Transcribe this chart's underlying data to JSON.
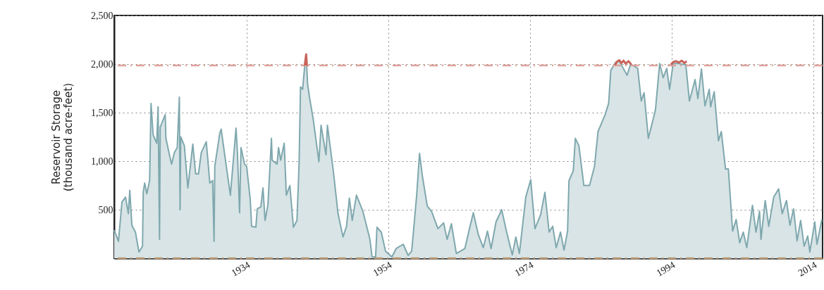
{
  "chart_data": {
    "type": "area",
    "ylabel": "Reservoir Storage\n(thousand acre-feet)",
    "xlim": [
      1915.3,
      2015.3
    ],
    "xticks": [
      1934,
      1954,
      1974,
      1994,
      2014
    ],
    "ylim": [
      0,
      2500
    ],
    "yticks": [
      500,
      {
        "value": 1000,
        "label": "1,000"
      },
      {
        "value": 1500,
        "label": "1,500"
      },
      {
        "value": 2000,
        "label": "2,000"
      },
      {
        "value": 2500,
        "label": "2,500"
      }
    ],
    "grid": true,
    "series": [
      {
        "color": "#7fa8ae",
        "x": [
          1915.3,
          1915.9,
          1916.4,
          1916.9,
          1917.3,
          1917.5,
          1917.8,
          1918.3,
          1918.8,
          1919.3,
          1919.4,
          1919.6,
          1919.9,
          1920.3,
          1920.5,
          1920.8,
          1921.3,
          1921.5,
          1921.7,
          1921.8,
          1922.5,
          1922.6,
          1923.1,
          1923.4,
          1923.8,
          1924.2,
          1924.5,
          1924.6,
          1924.7,
          1925.2,
          1925.7,
          1926.4,
          1926.8,
          1927.2,
          1927.6,
          1928.3,
          1928.8,
          1929.2,
          1929.4,
          1929.5,
          1930.2,
          1930.4,
          1931.0,
          1931.7,
          1932.5,
          1932.7,
          1933.0,
          1933.2,
          1933.7,
          1934.0,
          1934.5,
          1934.7,
          1935.3,
          1935.5,
          1936.0,
          1936.3,
          1936.6,
          1937.0,
          1937.5,
          1937.6,
          1938.3,
          1938.5,
          1938.8,
          1939.3,
          1939.6,
          1940.1,
          1940.6,
          1941.1,
          1941.4,
          1941.6,
          1941.9,
          1942.2,
          1942.4,
          1942.6,
          1942.9,
          1943.4,
          1944.2,
          1944.5,
          1945.2,
          1945.4,
          1946.2,
          1946.9,
          1947.6,
          1948.1,
          1948.5,
          1948.9,
          1949.5,
          1950.4,
          1951.4,
          1951.7,
          1952.2,
          1952.4,
          1953.0,
          1953.6,
          1954.5,
          1955.1,
          1956.1,
          1956.8,
          1957.3,
          1958.0,
          1958.4,
          1958.8,
          1959.5,
          1960.1,
          1961.0,
          1961.8,
          1962.3,
          1962.9,
          1963.6,
          1964.8,
          1965.4,
          1966.0,
          1966.7,
          1967.4,
          1968.0,
          1968.5,
          1969.2,
          1970.0,
          1970.7,
          1971.5,
          1972.0,
          1972.5,
          1973.4,
          1974.1,
          1974.7,
          1975.5,
          1976.1,
          1976.7,
          1977.2,
          1977.7,
          1978.3,
          1978.8,
          1979.3,
          1979.5,
          1980.1,
          1980.4,
          1980.9,
          1981.6,
          1982.4,
          1983.1,
          1983.6,
          1984.6,
          1985.1,
          1985.4,
          1986.1,
          1986.6,
          1987.7,
          1988.2,
          1989.2,
          1989.7,
          1990.1,
          1990.7,
          1991.7,
          1992.3,
          1992.8,
          1993.3,
          1993.7,
          1994.2,
          1995.0,
          1996.0,
          1996.5,
          1997.3,
          1997.7,
          1998.2,
          1998.7,
          1999.3,
          1999.5,
          2000.0,
          2000.6,
          2001.0,
          2001.6,
          2002.0,
          2002.6,
          2003.1,
          2003.6,
          2004.1,
          2004.6,
          2005.4,
          2005.9,
          2006.4,
          2006.6,
          2007.2,
          2007.7,
          2008.4,
          2009.1,
          2009.6,
          2010.2,
          2010.7,
          2011.2,
          2011.7,
          2012.2,
          2012.7,
          2013.2,
          2013.5,
          2014.2,
          2014.5,
          2015.2
        ],
        "values": [
          290,
          175,
          580,
          630,
          460,
          700,
          340,
          270,
          65,
          125,
          680,
          775,
          665,
          800,
          1595,
          1270,
          1185,
          1560,
          195,
          1350,
          1480,
          1235,
          1065,
          970,
          1090,
          1140,
          1660,
          500,
          1250,
          1160,
          725,
          1175,
          870,
          870,
          1090,
          1200,
          775,
          800,
          175,
          945,
          1285,
          1330,
          1015,
          650,
          1340,
          1080,
          470,
          1140,
          970,
          945,
          610,
          330,
          320,
          510,
          530,
          725,
          390,
          550,
          1235,
          1010,
          970,
          1140,
          1010,
          1185,
          650,
          750,
          320,
          390,
          970,
          1765,
          1740,
          1985,
          2100,
          1795,
          1645,
          1430,
          995,
          1370,
          1065,
          1370,
          920,
          460,
          220,
          330,
          620,
          390,
          650,
          485,
          195,
          15,
          15,
          320,
          270,
          75,
          15,
          100,
          145,
          30,
          75,
          650,
          1080,
          850,
          535,
          485,
          305,
          365,
          195,
          355,
          50,
          100,
          290,
          470,
          245,
          110,
          280,
          100,
          375,
          500,
          270,
          35,
          220,
          50,
          630,
          810,
          305,
          450,
          680,
          270,
          330,
          110,
          270,
          85,
          280,
          800,
          900,
          1235,
          1160,
          750,
          750,
          945,
          1305,
          1480,
          1595,
          1935,
          2020,
          2030,
          1885,
          2000,
          1955,
          1620,
          1705,
          1235,
          1525,
          2005,
          1860,
          1955,
          1740,
          2005,
          2005,
          1990,
          1620,
          1840,
          1645,
          1950,
          1570,
          1740,
          1560,
          1715,
          1210,
          1305,
          920,
          920,
          280,
          400,
          160,
          270,
          110,
          545,
          270,
          485,
          195,
          595,
          330,
          630,
          715,
          460,
          595,
          340,
          510,
          180,
          390,
          125,
          230,
          65,
          375,
          145,
          400
        ]
      },
      {
        "type": "line",
        "color": "#c9645c",
        "x": [
          1942.2,
          1942.4,
          1942.5
        ],
        "values": [
          1985,
          2100,
          1985
        ]
      },
      {
        "type": "line",
        "color": "#c9645c",
        "x": [
          1986.0,
          1986.3,
          1986.6,
          1986.9,
          1987.2,
          1987.5,
          1987.9,
          1988.3
        ],
        "values": [
          1990,
          2025,
          2040,
          2010,
          2035,
          2005,
          2030,
          1995
        ]
      },
      {
        "type": "line",
        "color": "#c9645c",
        "x": [
          1993.9,
          1994.2,
          1994.6,
          1995.0,
          1995.4,
          1995.8,
          1996.1
        ],
        "values": [
          1995,
          2020,
          2030,
          2015,
          2035,
          2010,
          2030
        ]
      }
    ],
    "ref_lines": [
      {
        "axis": "y",
        "value": 1985,
        "color": "#e0a29b",
        "line_style": "dashed"
      },
      {
        "axis": "y",
        "value": 0,
        "color": "#b5916a",
        "line_style": "dashed"
      }
    ]
  }
}
